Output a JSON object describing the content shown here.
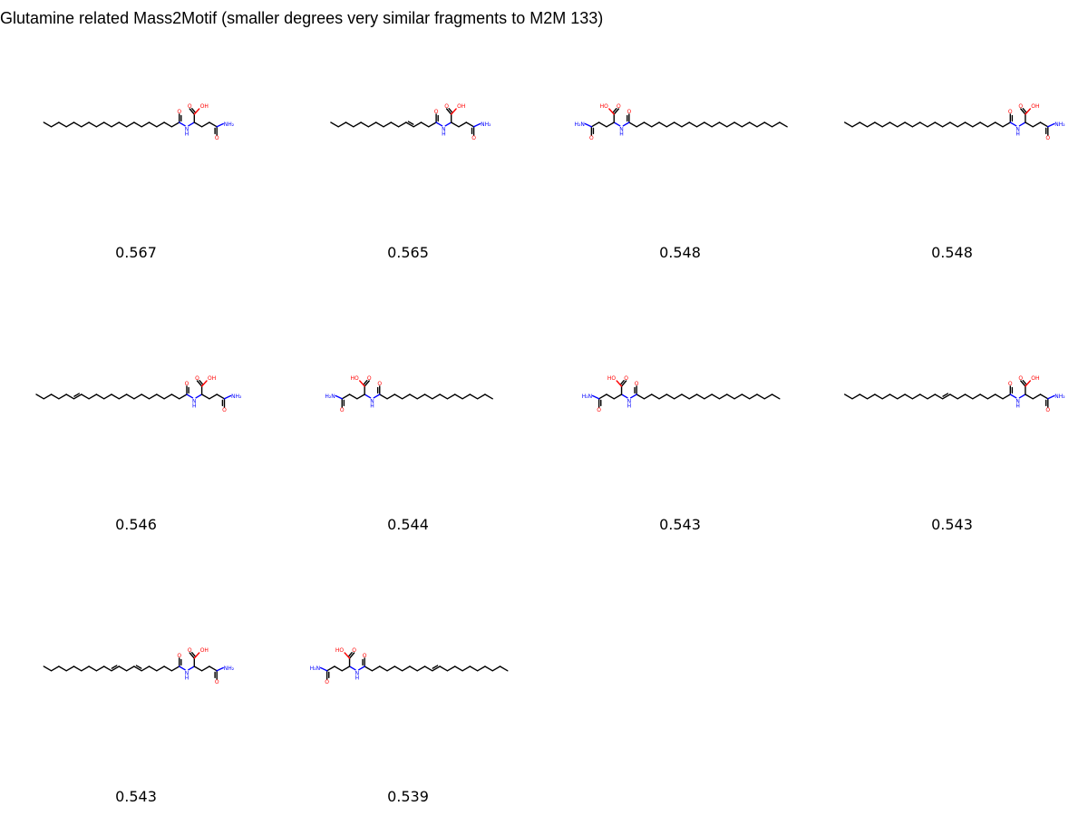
{
  "title": "Glutamine related Mass2Motif (smaller degrees very similar fragments to M2M 133)",
  "atom_labels": {
    "oxygen": "O",
    "hydroxyl": "OH",
    "hydroxyl_left": "HO",
    "amine": "NH₂",
    "amine_left": "H₂N",
    "amide_nh": "N",
    "amide_h": "H"
  },
  "colors": {
    "bond": "#000000",
    "oxygen": "#ff0000",
    "nitrogen": "#0000ff"
  },
  "molecules": [
    {
      "score": "0.567",
      "orientation": "right",
      "chain_bonds": 18,
      "double_bonds": []
    },
    {
      "score": "0.565",
      "orientation": "right",
      "chain_bonds": 14,
      "double_bonds": [
        4
      ]
    },
    {
      "score": "0.548",
      "orientation": "left",
      "chain_bonds": 21,
      "double_bonds": []
    },
    {
      "score": "0.548",
      "orientation": "right",
      "chain_bonds": 22,
      "double_bonds": []
    },
    {
      "score": "0.546",
      "orientation": "right",
      "chain_bonds": 20,
      "double_bonds": [
        15
      ]
    },
    {
      "score": "0.544",
      "orientation": "left",
      "chain_bonds": 15,
      "double_bonds": []
    },
    {
      "score": "0.543",
      "orientation": "left",
      "chain_bonds": 19,
      "double_bonds": []
    },
    {
      "score": "0.543",
      "orientation": "right",
      "chain_bonds": 22,
      "double_bonds": [
        9
      ]
    },
    {
      "score": "0.543",
      "orientation": "right",
      "chain_bonds": 18,
      "double_bonds": [
        6,
        9
      ]
    },
    {
      "score": "0.539",
      "orientation": "left",
      "chain_bonds": 19,
      "double_bonds": [
        10
      ]
    }
  ]
}
